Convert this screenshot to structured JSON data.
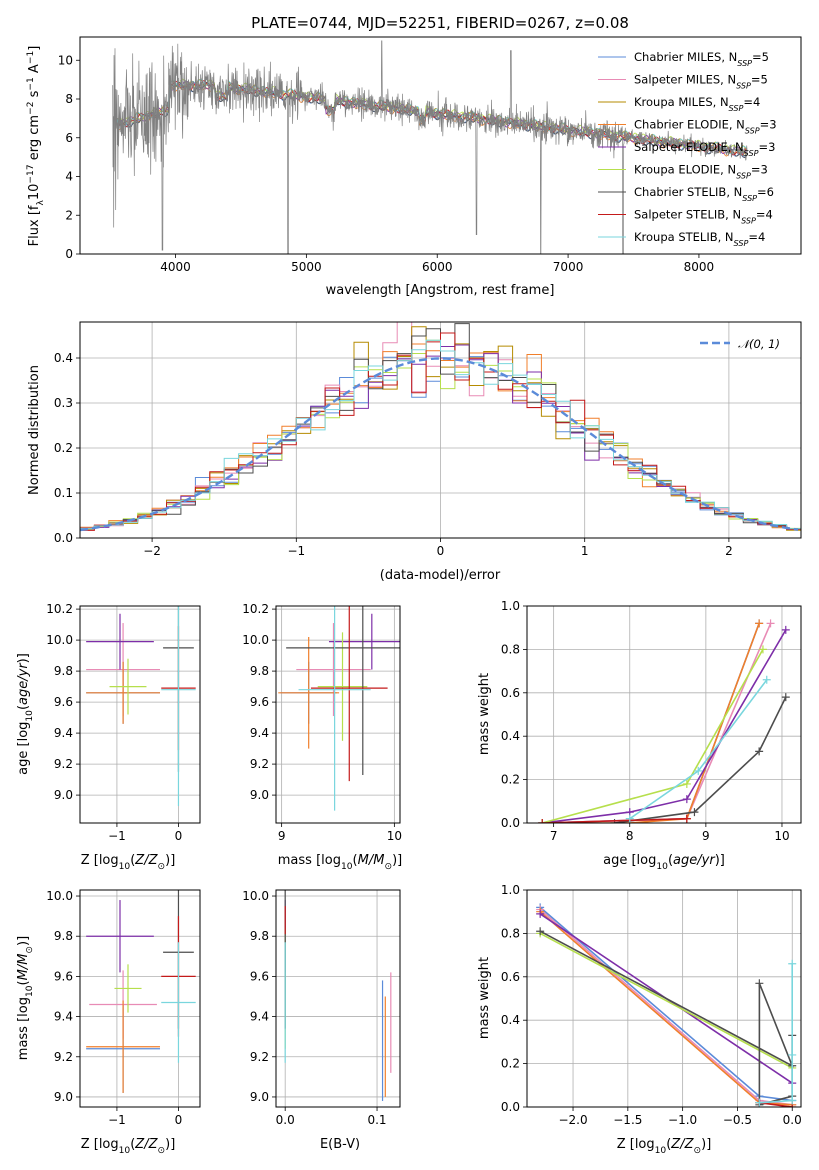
{
  "chart_data": [
    {
      "type": "line",
      "title": "PLATE=0744, MJD=52251, FIBERID=0267, z=0.08",
      "xlabel": "wavelength [Angstrom, rest frame]",
      "ylabel": "Flux [f_λ10^-17 erg cm^-2 s^-1 A^-1]",
      "xlim": [
        3270,
        8780
      ],
      "ylim": [
        0,
        11.2
      ],
      "xticks": [
        "4000",
        "5000",
        "6000",
        "7000",
        "8000"
      ],
      "yticks": [
        "0",
        "2",
        "4",
        "6",
        "8",
        "10"
      ],
      "grid": false,
      "legend_position": "top-right",
      "data_range": [
        3520,
        8370
      ],
      "series": [
        {
          "name": "Chabrier MILES, N_SSP=5",
          "color": "#5b8bd9"
        },
        {
          "name": "Salpeter MILES, N_SSP=5",
          "color": "#e88bb5"
        },
        {
          "name": "Kroupa MILES, N_SSP=4",
          "color": "#b58b00"
        },
        {
          "name": "Chabrier ELODIE, N_SSP=3",
          "color": "#f07f2b"
        },
        {
          "name": "Salpeter ELODIE, N_SSP=3",
          "color": "#7d2ea8"
        },
        {
          "name": "Kroupa ELODIE, N_SSP=3",
          "color": "#b6df4c"
        },
        {
          "name": "Chabrier STELIB, N_SSP=6",
          "color": "#4d4d4d"
        },
        {
          "name": "Salpeter STELIB, N_SSP=4",
          "color": "#c41a1a"
        },
        {
          "name": "Kroupa STELIB, N_SSP=4",
          "color": "#79d6dd"
        }
      ],
      "data_color": "#808080"
    },
    {
      "type": "line",
      "xlabel": "(data-model)/error",
      "ylabel": "Normed distribution",
      "xlim": [
        -2.5,
        2.5
      ],
      "ylim": [
        0,
        0.48
      ],
      "xticks": [
        "−2",
        "−1",
        "0",
        "1",
        "2"
      ],
      "yticks": [
        "0.0",
        "0.1",
        "0.2",
        "0.3",
        "0.4"
      ],
      "grid": true,
      "legend_position": "top-right",
      "reference_curve": {
        "name": "𝒩(0, 1)",
        "color": "#5b8bd9"
      },
      "bin_width": 0.1
    },
    {
      "type": "scatter",
      "xlabel": "Z [log10(Z/Z⊙)]",
      "ylabel": "age  [log10(age/yr)]",
      "xlim": [
        -1.6,
        0.35
      ],
      "ylim": [
        8.82,
        10.22
      ],
      "xticks": [
        "−1",
        "0"
      ],
      "yticks": [
        "9.0",
        "9.2",
        "9.4",
        "9.6",
        "9.8",
        "10.0",
        "10.2"
      ],
      "grid": true,
      "points": [
        {
          "color": "#5b8bd9",
          "x": -0.9,
          "x_err": 0.6,
          "y": 9.66,
          "y_err": 0.2
        },
        {
          "color": "#e88bb5",
          "x": -0.9,
          "x_err": 0.6,
          "y": 9.81,
          "y_err": 0.3
        },
        {
          "color": "#f07f2b",
          "x": -0.9,
          "x_err": 0.6,
          "y": 9.66,
          "y_err": 0.2
        },
        {
          "color": "#7d2ea8",
          "x": -0.95,
          "x_err": 0.55,
          "y": 9.99,
          "y_err": 0.18
        },
        {
          "color": "#b6df4c",
          "x": -0.82,
          "x_err": 0.3,
          "y": 9.7,
          "y_err": 0.18
        },
        {
          "color": "#4d4d4d",
          "x": 0.0,
          "x_err": 0.25,
          "y": 9.95,
          "y_err": 0.8
        },
        {
          "color": "#c41a1a",
          "x": 0.0,
          "x_err": 0.28,
          "y": 9.69,
          "y_err": 0.4
        },
        {
          "color": "#79d6dd",
          "x": 0.0,
          "x_err": 0.28,
          "y": 9.68,
          "y_err": 0.75
        }
      ]
    },
    {
      "type": "scatter",
      "xlabel": "mass [log10(M/M⊙)]",
      "xlim": [
        8.95,
        10.05
      ],
      "ylim": [
        8.82,
        10.22
      ],
      "xticks": [
        "9",
        "10"
      ],
      "yticks": [
        "9.0",
        "9.2",
        "9.4",
        "9.6",
        "9.8",
        "10.0",
        "10.2"
      ],
      "grid": true,
      "points": [
        {
          "color": "#5b8bd9",
          "x": 9.24,
          "x_err": 0.25,
          "y": 9.66,
          "y_err": 0.2
        },
        {
          "color": "#e88bb5",
          "x": 9.46,
          "x_err": 0.33,
          "y": 9.81,
          "y_err": 0.3
        },
        {
          "color": "#f07f2b",
          "x": 9.24,
          "x_err": 0.27,
          "y": 9.66,
          "y_err": 0.36
        },
        {
          "color": "#7d2ea8",
          "x": 9.8,
          "x_err": 0.38,
          "y": 9.99,
          "y_err": 0.18
        },
        {
          "color": "#b6df4c",
          "x": 9.54,
          "x_err": 0.22,
          "y": 9.7,
          "y_err": 0.35
        },
        {
          "color": "#4d4d4d",
          "x": 9.72,
          "x_err": 0.68,
          "y": 9.95,
          "y_err": 0.82
        },
        {
          "color": "#c41a1a",
          "x": 9.6,
          "x_err": 0.34,
          "y": 9.69,
          "y_err": 0.6
        },
        {
          "color": "#79d6dd",
          "x": 9.47,
          "x_err": 0.32,
          "y": 9.68,
          "y_err": 0.78
        }
      ]
    },
    {
      "type": "line",
      "xlabel": "age  [log10(age/yr)]",
      "ylabel": "mass weight",
      "xlim": [
        6.65,
        10.25
      ],
      "ylim": [
        0,
        1.0
      ],
      "xticks": [
        "7",
        "8",
        "9",
        "10"
      ],
      "yticks": [
        "0.0",
        "0.2",
        "0.4",
        "0.6",
        "0.8",
        "1.0"
      ],
      "grid": true,
      "series": [
        {
          "color": "#5b8bd9",
          "x": [
            6.85,
            8.75,
            9.7
          ],
          "y": [
            0.0,
            0.02,
            0.92
          ]
        },
        {
          "color": "#e88bb5",
          "x": [
            6.85,
            8.75,
            9.85
          ],
          "y": [
            0.0,
            0.02,
            0.92
          ]
        },
        {
          "color": "#f07f2b",
          "x": [
            6.85,
            8.0,
            8.75,
            9.7
          ],
          "y": [
            0.0,
            0.0,
            0.02,
            0.92
          ]
        },
        {
          "color": "#7d2ea8",
          "x": [
            6.85,
            8.0,
            8.75,
            10.05
          ],
          "y": [
            0.0,
            0.05,
            0.11,
            0.89
          ]
        },
        {
          "color": "#b6df4c",
          "x": [
            6.85,
            8.75,
            9.75
          ],
          "y": [
            0.0,
            0.18,
            0.8
          ]
        },
        {
          "color": "#4d4d4d",
          "x": [
            7.8,
            8.85,
            9.7,
            10.05
          ],
          "y": [
            0.0,
            0.05,
            0.33,
            0.58
          ]
        },
        {
          "color": "#c41a1a",
          "x": [
            6.85,
            8.75
          ],
          "y": [
            0.0,
            0.02
          ]
        },
        {
          "color": "#79d6dd",
          "x": [
            8.0,
            8.9,
            9.8
          ],
          "y": [
            0.02,
            0.24,
            0.66
          ]
        }
      ]
    },
    {
      "type": "scatter",
      "xlabel": "Z [log10(Z/Z⊙)]",
      "ylabel": "mass [log10(M/M⊙)]",
      "xlim": [
        -1.6,
        0.35
      ],
      "ylim": [
        8.95,
        10.03
      ],
      "xticks": [
        "−1",
        "0"
      ],
      "yticks": [
        "9.0",
        "9.2",
        "9.4",
        "9.6",
        "9.8",
        "10.0"
      ],
      "grid": true,
      "points": [
        {
          "color": "#5b8bd9",
          "x": -0.9,
          "x_err": 0.6,
          "y": 9.24,
          "y_err": 0.22
        },
        {
          "color": "#e88bb5",
          "x": -0.9,
          "x_err": 0.55,
          "y": 9.46,
          "y_err": 0.17
        },
        {
          "color": "#f07f2b",
          "x": -0.9,
          "x_err": 0.6,
          "y": 9.25,
          "y_err": 0.23
        },
        {
          "color": "#7d2ea8",
          "x": -0.95,
          "x_err": 0.55,
          "y": 9.8,
          "y_err": 0.18
        },
        {
          "color": "#b6df4c",
          "x": -0.82,
          "x_err": 0.22,
          "y": 9.54,
          "y_err": 0.12
        },
        {
          "color": "#4d4d4d",
          "x": 0.0,
          "x_err": 0.25,
          "y": 9.72,
          "y_err": 0.38
        },
        {
          "color": "#c41a1a",
          "x": 0.0,
          "x_err": 0.28,
          "y": 9.6,
          "y_err": 0.3
        },
        {
          "color": "#79d6dd",
          "x": 0.0,
          "x_err": 0.28,
          "y": 9.47,
          "y_err": 0.3
        }
      ]
    },
    {
      "type": "scatter",
      "xlabel": "E(B-V)",
      "xlim": [
        -0.01,
        0.125
      ],
      "ylim": [
        8.95,
        10.03
      ],
      "xticks": [
        "0.0",
        "0.1"
      ],
      "yticks": [
        "9.0",
        "9.2",
        "9.4",
        "9.6",
        "9.8",
        "10.0"
      ],
      "grid": true,
      "points": [
        {
          "color": "#5b8bd9",
          "x": 0.106,
          "x_err": 0.0,
          "y": 9.28,
          "y_err": 0.3
        },
        {
          "color": "#e88bb5",
          "x": 0.115,
          "x_err": 0.0,
          "y": 9.37,
          "y_err": 0.25
        },
        {
          "color": "#f07f2b",
          "x": 0.109,
          "x_err": 0.0,
          "y": 9.25,
          "y_err": 0.25
        },
        {
          "color": "#7d2ea8",
          "x": 0.0,
          "x_err": 0.0,
          "y": 9.8,
          "y_err": 0.18
        },
        {
          "color": "#b6df4c",
          "x": 0.0,
          "x_err": 0.0,
          "y": 9.54,
          "y_err": 0.3
        },
        {
          "color": "#4d4d4d",
          "x": 0.0,
          "x_err": 0.0,
          "y": 9.72,
          "y_err": 0.38
        },
        {
          "color": "#c41a1a",
          "x": 0.0,
          "x_err": 0.0,
          "y": 9.88,
          "y_err": 0.07
        },
        {
          "color": "#79d6dd",
          "x": 0.0,
          "x_err": 0.0,
          "y": 9.47,
          "y_err": 0.3
        }
      ]
    },
    {
      "type": "line",
      "xlabel": "Z [log10(Z/Z⊙)]",
      "ylabel": "mass weight",
      "xlim": [
        -2.42,
        0.08
      ],
      "ylim": [
        0,
        1.0
      ],
      "xticks": [
        "−2.0",
        "−1.5",
        "−1.0",
        "−0.5",
        "0.0"
      ],
      "yticks": [
        "0.0",
        "0.2",
        "0.4",
        "0.6",
        "0.8",
        "1.0"
      ],
      "grid": true,
      "series": [
        {
          "color": "#5b8bd9",
          "x": [
            -2.3,
            -0.3,
            0.0
          ],
          "y": [
            0.92,
            0.05,
            0.03
          ]
        },
        {
          "color": "#e88bb5",
          "x": [
            -2.3,
            -0.3,
            0.0
          ],
          "y": [
            0.91,
            0.03,
            0.01
          ]
        },
        {
          "color": "#f07f2b",
          "x": [
            -2.3,
            -0.3,
            0.0
          ],
          "y": [
            0.9,
            0.02,
            0.01
          ]
        },
        {
          "color": "#7d2ea8",
          "x": [
            -2.3,
            0.0
          ],
          "y": [
            0.89,
            0.11
          ]
        },
        {
          "color": "#b6df4c",
          "x": [
            -2.3,
            0.0
          ],
          "y": [
            0.8,
            0.18
          ]
        },
        {
          "color": "#4d4d4d",
          "x": [
            -2.3,
            0.0,
            -0.3,
            -0.3,
            0.0,
            0.0
          ],
          "y": [
            0.81,
            0.19,
            0.57,
            0.01,
            0.05,
            0.33
          ]
        },
        {
          "color": "#c41a1a",
          "x": [
            -0.3,
            0.0
          ],
          "y": [
            0.02,
            0.0
          ]
        },
        {
          "color": "#79d6dd",
          "x": [
            -0.3,
            0.0,
            0.0,
            0.0
          ],
          "y": [
            0.02,
            0.03,
            0.24,
            0.66
          ]
        }
      ]
    }
  ]
}
